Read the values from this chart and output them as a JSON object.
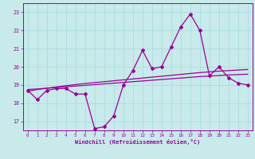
{
  "x": [
    0,
    1,
    2,
    3,
    4,
    5,
    6,
    7,
    8,
    9,
    10,
    11,
    12,
    13,
    14,
    15,
    16,
    17,
    18,
    19,
    20,
    21,
    22,
    23
  ],
  "main_line": [
    18.7,
    18.2,
    18.7,
    18.8,
    18.8,
    18.5,
    18.5,
    16.6,
    16.7,
    17.3,
    19.0,
    19.8,
    20.9,
    19.9,
    20.0,
    21.1,
    22.2,
    22.9,
    22.0,
    19.5,
    20.0,
    19.4,
    19.1,
    19.0
  ],
  "trend1": [
    18.65,
    18.75,
    18.82,
    18.89,
    18.96,
    19.02,
    19.08,
    19.13,
    19.18,
    19.23,
    19.28,
    19.33,
    19.38,
    19.43,
    19.48,
    19.53,
    19.58,
    19.63,
    19.68,
    19.72,
    19.76,
    19.79,
    19.82,
    19.85
  ],
  "trend2": [
    18.75,
    18.78,
    18.82,
    18.86,
    18.9,
    18.94,
    18.98,
    19.02,
    19.06,
    19.1,
    19.14,
    19.18,
    19.22,
    19.26,
    19.3,
    19.34,
    19.38,
    19.42,
    19.46,
    19.49,
    19.52,
    19.55,
    19.57,
    19.59
  ],
  "bg_color": "#c8eaea",
  "line_color": "#990099",
  "grid_color": "#aadddd",
  "xlabel": "Windchill (Refroidissement éolien,°C)",
  "xlim": [
    -0.5,
    23.5
  ],
  "ylim": [
    16.5,
    23.5
  ],
  "yticks": [
    17,
    18,
    19,
    20,
    21,
    22,
    23
  ],
  "xticks": [
    0,
    1,
    2,
    3,
    4,
    5,
    6,
    7,
    8,
    9,
    10,
    11,
    12,
    13,
    14,
    15,
    16,
    17,
    18,
    19,
    20,
    21,
    22,
    23
  ]
}
